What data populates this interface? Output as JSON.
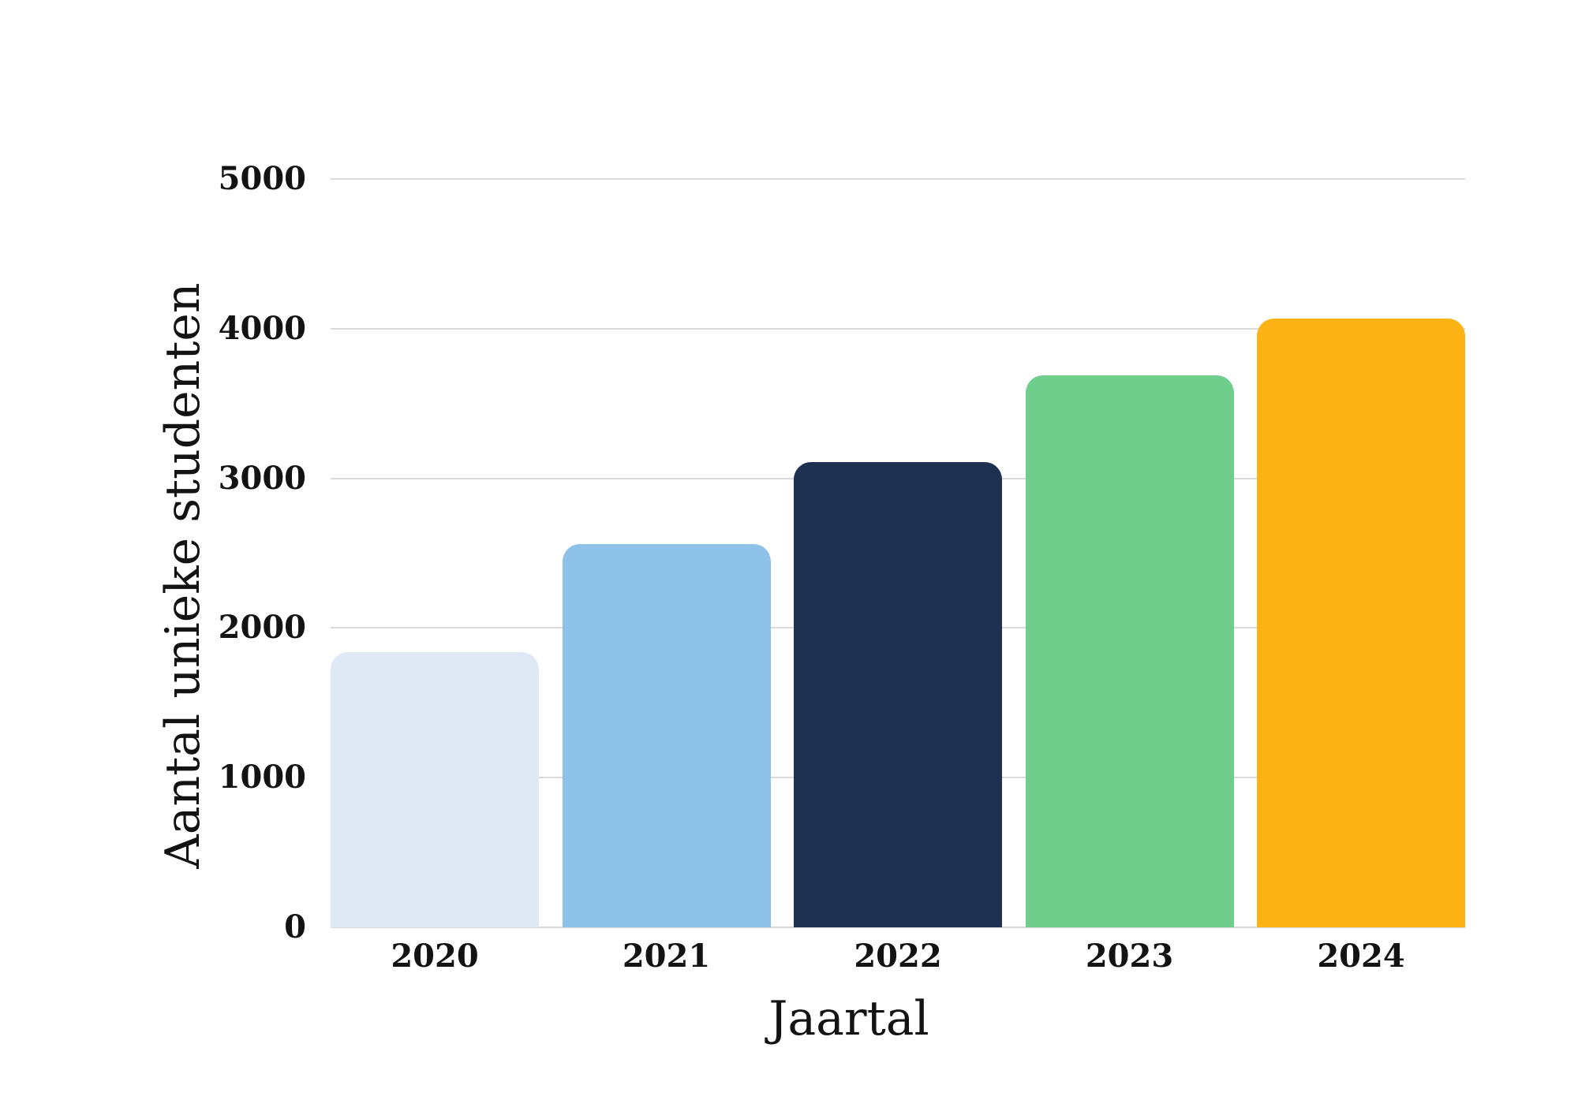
{
  "page": {
    "background_color": "#ffffff",
    "text_color": "#131313"
  },
  "chart_data": {
    "type": "bar",
    "title": "",
    "xlabel": "Jaartal",
    "ylabel": "Aantal unieke studenten",
    "categories": [
      "2020",
      "2021",
      "2022",
      "2023",
      "2024"
    ],
    "values": [
      1840,
      2560,
      3110,
      3690,
      4070
    ],
    "bar_colors": [
      "#dee9f5",
      "#8fc2e9",
      "#1e3150",
      "#6fce8c",
      "#fcb415"
    ],
    "ylim": [
      0,
      5000
    ],
    "yticks": [
      0,
      1000,
      2000,
      3000,
      4000,
      5000
    ],
    "ytick_labels": [
      "0",
      "1000",
      "2000",
      "3000",
      "4000",
      "5000"
    ],
    "grid": "horizontal",
    "gridline_color": "#d9d9d9",
    "legend": "none"
  }
}
